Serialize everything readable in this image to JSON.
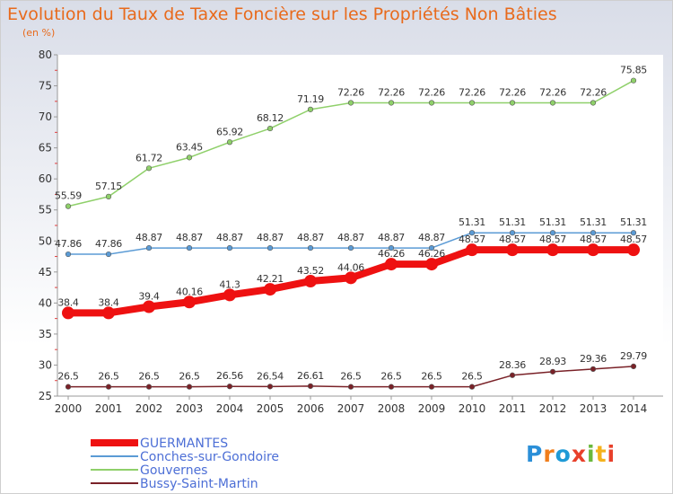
{
  "chart_data": {
    "type": "line",
    "title": "Evolution du Taux de Taxe Foncière sur les Propriétés Non Bâties",
    "ylabel": "(en %)",
    "xlabel": "",
    "x": [
      "2000",
      "2001",
      "2002",
      "2003",
      "2004",
      "2005",
      "2006",
      "2007",
      "2008",
      "2009",
      "2010",
      "2011",
      "2012",
      "2013",
      "2014"
    ],
    "ylim": [
      25,
      80
    ],
    "yticks": [
      25,
      30,
      35,
      40,
      45,
      50,
      55,
      60,
      65,
      70,
      75,
      80
    ],
    "grid": false,
    "legend_position": "bottom-left",
    "series": [
      {
        "name": "Conches-sur-Gondoire",
        "color": "#5b9bd5",
        "width": 1.5,
        "marker": 2.8,
        "values": [
          47.86,
          47.86,
          48.87,
          48.87,
          48.87,
          48.87,
          48.87,
          48.87,
          48.87,
          48.87,
          51.31,
          51.31,
          51.31,
          51.31,
          51.31
        ],
        "labels": [
          "47.86",
          "47.86",
          "48.87",
          "48.87",
          "48.87",
          "48.87",
          "48.87",
          "48.87",
          "48.87",
          "48.87",
          "51.31",
          "51.31",
          "51.31",
          "51.31",
          "51.31"
        ]
      },
      {
        "name": "Gouvernes",
        "color": "#8fd06a",
        "width": 1.5,
        "marker": 2.8,
        "values": [
          55.59,
          57.15,
          61.72,
          63.45,
          65.92,
          68.12,
          71.19,
          72.26,
          72.26,
          72.26,
          72.26,
          72.26,
          72.26,
          72.26,
          75.85
        ],
        "labels": [
          "55.59",
          "57.15",
          "61.72",
          "63.45",
          "65.92",
          "68.12",
          "71.19",
          "72.26",
          "72.26",
          "72.26",
          "72.26",
          "72.26",
          "72.26",
          "72.26",
          "75.85"
        ]
      },
      {
        "name": "Bussy-Saint-Martin",
        "color": "#7a2228",
        "width": 1.5,
        "marker": 2.8,
        "values": [
          26.5,
          26.5,
          26.5,
          26.5,
          26.56,
          26.54,
          26.61,
          26.5,
          26.5,
          26.5,
          26.5,
          28.36,
          28.93,
          29.36,
          29.79
        ],
        "labels": [
          "26.5",
          "26.5",
          "26.5",
          "26.5",
          "26.56",
          "26.54",
          "26.61",
          "26.5",
          "26.5",
          "26.5",
          "26.5",
          "28.36",
          "28.93",
          "29.36",
          "29.79"
        ]
      },
      {
        "name": "GUERMANTES",
        "color": "#ee1111",
        "width": 8,
        "marker": 7,
        "values": [
          38.4,
          38.4,
          39.4,
          40.16,
          41.3,
          42.21,
          43.52,
          44.06,
          46.26,
          46.26,
          48.57,
          48.57,
          48.57,
          48.57,
          48.57
        ],
        "labels": [
          "38.4",
          "38.4",
          "39.4",
          "40.16",
          "41.3",
          "42.21",
          "43.52",
          "44.06",
          "46.26",
          "46.26",
          "48.57",
          "48.57",
          "48.57",
          "48.57",
          "48.57"
        ]
      }
    ],
    "legend": [
      {
        "name": "GUERMANTES",
        "color": "#ee1111",
        "width": 8
      },
      {
        "name": "Conches-sur-Gondoire",
        "color": "#5b9bd5",
        "width": 2
      },
      {
        "name": "Gouvernes",
        "color": "#8fd06a",
        "width": 2
      },
      {
        "name": "Bussy-Saint-Martin",
        "color": "#7a2228",
        "width": 2
      }
    ]
  },
  "logo_text": "Proxiti"
}
